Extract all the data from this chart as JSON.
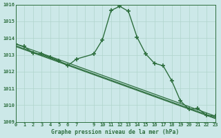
{
  "title": "Graphe pression niveau de la mer (hPa)",
  "bg_color": "#cce8e8",
  "line_color": "#2d6e3e",
  "grid_color": "#b0d4cc",
  "xlim": [
    0,
    23
  ],
  "ylim": [
    1009,
    1016
  ],
  "yticks": [
    1009,
    1010,
    1011,
    1012,
    1013,
    1014,
    1015,
    1016
  ],
  "xtick_labels": [
    "0",
    "1",
    "2",
    "3",
    "4",
    "5",
    "6",
    "7",
    "",
    "9",
    "10",
    "11",
    "12",
    "13",
    "14",
    "15",
    "16",
    "17",
    "18",
    "19",
    "20",
    "21",
    "22",
    "23"
  ],
  "series": [
    {
      "x": [
        0,
        1,
        2,
        3,
        4,
        5,
        6,
        7,
        9,
        10,
        11,
        12,
        13,
        14,
        15,
        16,
        17,
        18,
        19,
        20,
        21,
        22,
        23
      ],
      "y": [
        1013.65,
        1013.5,
        1013.1,
        1013.05,
        1012.85,
        1012.65,
        1012.35,
        1012.75,
        1013.05,
        1013.9,
        1015.65,
        1015.9,
        1015.6,
        1014.05,
        1013.05,
        1012.5,
        1012.35,
        1011.45,
        1010.25,
        1009.75,
        1009.8,
        1009.4,
        1009.35
      ]
    },
    {
      "x": [
        0,
        23
      ],
      "y": [
        1013.65,
        1009.35
      ]
    },
    {
      "x": [
        0,
        23
      ],
      "y": [
        1013.55,
        1009.25
      ]
    },
    {
      "x": [
        0,
        23
      ],
      "y": [
        1013.5,
        1009.2
      ]
    }
  ]
}
